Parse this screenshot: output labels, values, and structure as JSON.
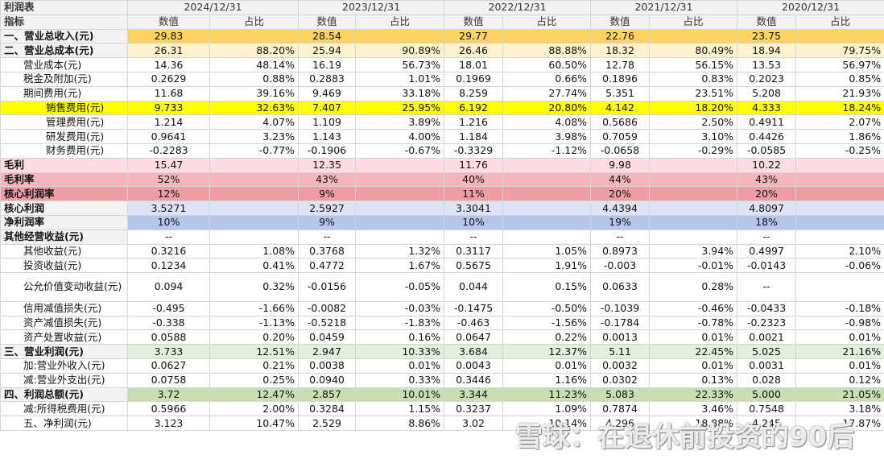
{
  "header": {
    "title": "利润表",
    "col_label": "指标",
    "periods": [
      {
        "date": "2024/12/31",
        "cols": [
          "数值",
          "占比"
        ]
      },
      {
        "date": "2023/12/31",
        "cols": [
          "数值",
          "占比"
        ]
      },
      {
        "date": "2022/12/31",
        "cols": [
          "数值",
          "占比"
        ]
      },
      {
        "date": "2021/12/31",
        "cols": [
          "数值",
          "占比"
        ]
      },
      {
        "date": "2020/12/31",
        "cols": [
          "数值",
          "占比"
        ]
      }
    ]
  },
  "rows": [
    {
      "label": "一、营业总收入(元)",
      "cells": [
        "29.83",
        null,
        "28.54",
        null,
        "29.77",
        null,
        "22.76",
        null,
        "23.75",
        null
      ]
    },
    {
      "label": "二、营业总成本(元)",
      "cells": [
        "26.31",
        "88.20%",
        "25.94",
        "90.89%",
        "26.46",
        "88.88%",
        "18.32",
        "80.49%",
        "18.94",
        "79.75%"
      ]
    },
    {
      "label": "营业成本(元)",
      "cells": [
        "14.36",
        "48.14%",
        "16.19",
        "56.73%",
        "18.01",
        "60.50%",
        "12.78",
        "56.15%",
        "13.53",
        "56.97%"
      ]
    },
    {
      "label": "税金及附加(元)",
      "cells": [
        "0.2629",
        "0.88%",
        "0.2883",
        "1.01%",
        "0.1969",
        "0.66%",
        "0.1896",
        "0.83%",
        "0.2023",
        "0.85%"
      ]
    },
    {
      "label": "期间费用(元)",
      "cells": [
        "11.68",
        "39.16%",
        "9.469",
        "33.18%",
        "8.259",
        "27.74%",
        "5.351",
        "23.51%",
        "5.208",
        "21.93%"
      ]
    },
    {
      "label": "销售费用(元)",
      "cells": [
        "9.733",
        "32.63%",
        "7.407",
        "25.95%",
        "6.192",
        "20.80%",
        "4.142",
        "18.20%",
        "4.333",
        "18.24%"
      ]
    },
    {
      "label": "管理费用(元)",
      "cells": [
        "1.214",
        "4.07%",
        "1.109",
        "3.89%",
        "1.216",
        "4.08%",
        "0.5686",
        "2.50%",
        "0.4911",
        "2.07%"
      ]
    },
    {
      "label": "研发费用(元)",
      "cells": [
        "0.9641",
        "3.23%",
        "1.143",
        "4.00%",
        "1.184",
        "3.98%",
        "0.7059",
        "3.10%",
        "0.4426",
        "1.86%"
      ]
    },
    {
      "label": "财务费用(元)",
      "cells": [
        "-0.2283",
        "-0.77%",
        "-0.1906",
        "-0.67%",
        "-0.3329",
        "-1.12%",
        "-0.0658",
        "-0.29%",
        "-0.0585",
        "-0.25%"
      ]
    },
    {
      "label": "毛利",
      "cells": [
        "15.47",
        null,
        "12.35",
        null,
        "11.76",
        null,
        "9.98",
        null,
        "10.22",
        null
      ]
    },
    {
      "label": "毛利率",
      "cells": [
        "52%",
        null,
        "43%",
        null,
        "40%",
        null,
        "44%",
        null,
        "43%",
        null
      ]
    },
    {
      "label": "核心利润率",
      "cells": [
        "12%",
        null,
        "9%",
        null,
        "11%",
        null,
        "20%",
        null,
        "20%",
        null
      ]
    },
    {
      "label": "核心利润",
      "cells": [
        "3.5271",
        null,
        "2.5927",
        null,
        "3.3041",
        null,
        "4.4394",
        null,
        "4.8097",
        null
      ]
    },
    {
      "label": "净利润率",
      "cells": [
        "10%",
        null,
        "9%",
        null,
        "10%",
        null,
        "19%",
        null,
        "18%",
        null
      ]
    },
    {
      "label": "其他经营收益(元)",
      "cells": [
        "--",
        null,
        "--",
        null,
        "--",
        null,
        "--",
        null,
        "--",
        null
      ]
    },
    {
      "label": "其他收益(元)",
      "cells": [
        "0.3216",
        "1.08%",
        "0.3768",
        "1.32%",
        "0.3117",
        "1.05%",
        "0.8973",
        "3.94%",
        "0.4997",
        "2.10%"
      ]
    },
    {
      "label": "投资收益(元)",
      "cells": [
        "0.1234",
        "0.41%",
        "0.4772",
        "1.67%",
        "0.5675",
        "1.91%",
        "-0.003",
        "-0.01%",
        "-0.0143",
        "-0.06%"
      ]
    },
    {
      "label": "公允价值变动收益(元)",
      "cells": [
        "0.094",
        "0.32%",
        "-0.0156",
        "-0.05%",
        "0.044",
        "0.15%",
        "0.0633",
        "0.28%",
        "--",
        null
      ]
    },
    {
      "label": "信用减值损失(元)",
      "cells": [
        "-0.495",
        "-1.66%",
        "-0.0082",
        "-0.03%",
        "-0.1475",
        "-0.50%",
        "-0.1039",
        "-0.46%",
        "-0.0433",
        "-0.18%"
      ]
    },
    {
      "label": "资产减值损失(元)",
      "cells": [
        "-0.338",
        "-1.13%",
        "-0.5218",
        "-1.83%",
        "-0.463",
        "-1.56%",
        "-0.1784",
        "-0.78%",
        "-0.2323",
        "-0.98%"
      ]
    },
    {
      "label": "资产处置收益(元)",
      "cells": [
        "0.0588",
        "0.20%",
        "0.0459",
        "0.16%",
        "0.0647",
        "0.22%",
        "0.0013",
        "0.01%",
        "0.0021",
        "0.01%"
      ]
    },
    {
      "label": "三、营业利润(元)",
      "cells": [
        "3.733",
        "12.51%",
        "2.947",
        "10.33%",
        "3.684",
        "12.37%",
        "5.11",
        "22.45%",
        "5.025",
        "21.16%"
      ]
    },
    {
      "label": "加:营业外收入(元)",
      "cells": [
        "0.0627",
        "0.21%",
        "0.0038",
        "0.01%",
        "0.0043",
        "0.01%",
        "0.0032",
        "0.01%",
        "0.0031",
        "0.01%"
      ]
    },
    {
      "label": "减:营业外支出(元)",
      "cells": [
        "0.0758",
        "0.25%",
        "0.0940",
        "0.33%",
        "0.3446",
        "1.16%",
        "0.0302",
        "0.13%",
        "0.028",
        "0.12%"
      ]
    },
    {
      "label": "四、利润总额(元)",
      "cells": [
        "3.72",
        "12.47%",
        "2.857",
        "10.01%",
        "3.344",
        "11.23%",
        "5.083",
        "22.33%",
        "5.000",
        "21.05%"
      ]
    },
    {
      "label": "减:所得税费用(元)",
      "cells": [
        "0.5966",
        "2.00%",
        "0.3284",
        "1.15%",
        "0.3237",
        "1.09%",
        "0.7874",
        "3.46%",
        "0.7548",
        "3.18%"
      ]
    },
    {
      "label": "五、净利润(元)",
      "cells": [
        "3.123",
        "10.47%",
        "2.529",
        "8.86%",
        "3.02",
        "10.14%",
        "4.296",
        "18.88%",
        "4.245",
        "17.87%"
      ]
    }
  ],
  "watermark": "雪球：在退休前投资的90后"
}
